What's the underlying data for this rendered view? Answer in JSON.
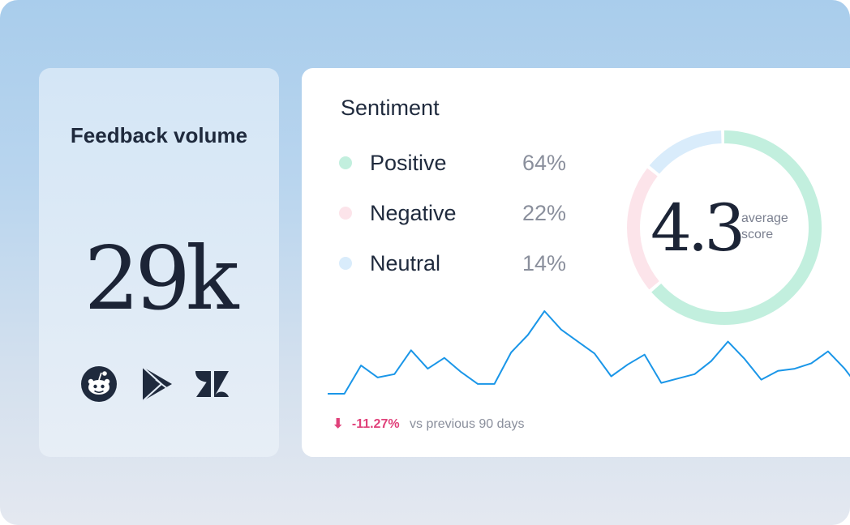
{
  "volume": {
    "title": "Feedback volume",
    "value": "29k",
    "sources": [
      {
        "icon": "reddit-icon"
      },
      {
        "icon": "google-play-icon"
      },
      {
        "icon": "zendesk-icon"
      }
    ]
  },
  "sentiment": {
    "title": "Sentiment",
    "items": [
      {
        "label": "Positive",
        "value": "64%",
        "color": "#c2efde",
        "share": 0.64
      },
      {
        "label": "Negative",
        "value": "22%",
        "color": "#fce4ea",
        "share": 0.22
      },
      {
        "label": "Neutral",
        "value": "14%",
        "color": "#d9ecfb",
        "share": 0.14
      }
    ],
    "score": "4.3",
    "score_label": "average score",
    "trend": {
      "change": "-11.27%",
      "comparison": "vs previous 90 days",
      "arrow": "⬇",
      "color": "#1a96e8",
      "values": [
        4,
        4,
        30,
        19,
        22,
        44,
        27,
        37,
        24,
        13,
        13,
        42,
        58,
        80,
        63,
        52,
        41,
        20,
        31,
        40,
        14,
        18,
        22,
        34,
        52,
        36,
        17,
        25,
        27,
        32,
        43,
        27,
        7
      ]
    }
  }
}
